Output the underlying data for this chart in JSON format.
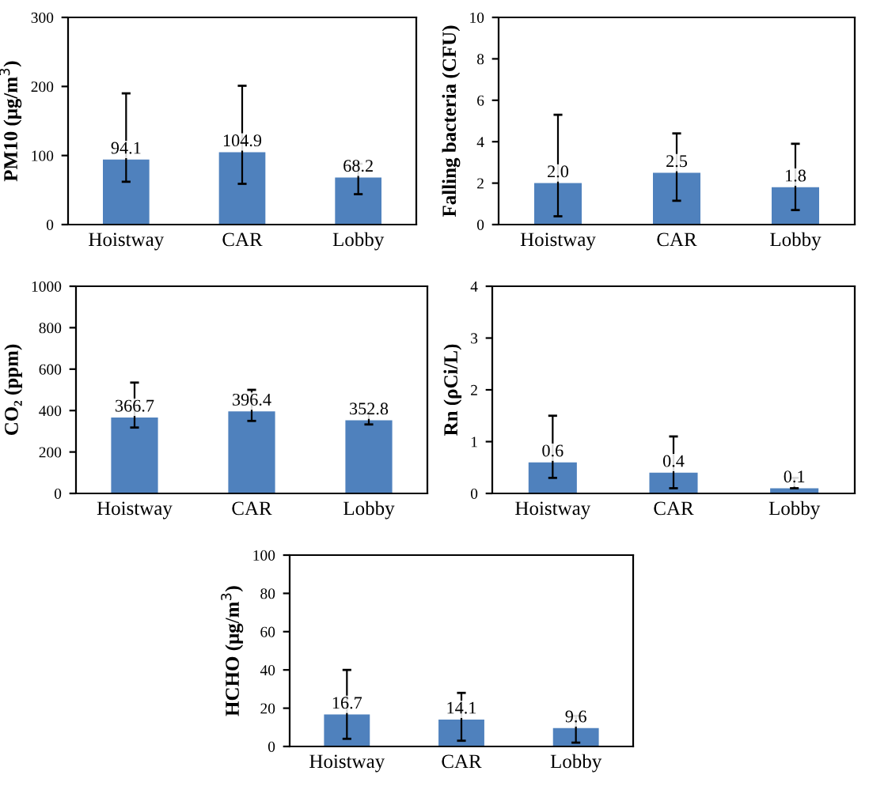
{
  "chart_data": [
    {
      "type": "bar",
      "ylabel": "PM10 (μg/m$^{3}$)",
      "categories": [
        "Hoistway",
        "CAR",
        "Lobby"
      ],
      "values": [
        94.1,
        104.9,
        68.2
      ],
      "color": "#4f81bd",
      "errors": [
        [
          62,
          190
        ],
        [
          59,
          201
        ],
        [
          44,
          88
        ]
      ],
      "ylim": [
        0,
        300
      ],
      "yticks": [
        0,
        100,
        200,
        300
      ],
      "data_labels": true,
      "grid": false,
      "legend": false
    },
    {
      "type": "bar",
      "ylabel": "Falling bacteria (CFU)",
      "categories": [
        "Hoistway",
        "CAR",
        "Lobby"
      ],
      "values": [
        2.0,
        2.5,
        1.8
      ],
      "color": "#4f81bd",
      "errors": [
        [
          0.4,
          5.3
        ],
        [
          1.15,
          4.4
        ],
        [
          0.7,
          3.9
        ]
      ],
      "ylim": [
        0,
        10
      ],
      "yticks": [
        0,
        2,
        4,
        6,
        8,
        10
      ],
      "value_labels": [
        "2.0",
        "2.5",
        "1.8"
      ],
      "grid": false,
      "legend": false
    },
    {
      "type": "bar",
      "ylabel": "CO₂ (ppm)",
      "categories": [
        "Hoistway",
        "CAR",
        "Lobby"
      ],
      "values": [
        366.7,
        396.4,
        352.8
      ],
      "color": "#4f81bd",
      "errors": [
        [
          318,
          535
        ],
        [
          350,
          500
        ],
        [
          333,
          385
        ]
      ],
      "ylim": [
        0,
        1000
      ],
      "yticks": [
        0,
        200,
        400,
        600,
        800,
        1000
      ],
      "data_labels": true,
      "grid": false,
      "legend": false
    },
    {
      "type": "bar",
      "ylabel": "Rn (ρCi/L)",
      "categories": [
        "Hoistway",
        "CAR",
        "Lobby"
      ],
      "values": [
        0.6,
        0.4,
        0.1
      ],
      "color": "#4f81bd",
      "errors": [
        [
          0.3,
          1.5
        ],
        [
          0.1,
          1.1
        ],
        [
          0.1,
          0.3
        ]
      ],
      "ylim": [
        0,
        4
      ],
      "yticks": [
        0,
        1,
        2,
        3,
        4
      ],
      "data_labels": true,
      "grid": false,
      "legend": false
    },
    {
      "type": "bar",
      "ylabel": "HCHO (μg/m$^{3}$)",
      "categories": [
        "Hoistway",
        "CAR",
        "Lobby"
      ],
      "values": [
        16.7,
        14.1,
        9.6
      ],
      "color": "#4f81bd",
      "errors": [
        [
          4,
          40
        ],
        [
          3,
          28
        ],
        [
          2,
          16
        ]
      ],
      "ylim": [
        0,
        100
      ],
      "yticks": [
        0,
        20,
        40,
        60,
        80,
        100
      ],
      "data_labels": true,
      "grid": false,
      "legend": false
    }
  ]
}
